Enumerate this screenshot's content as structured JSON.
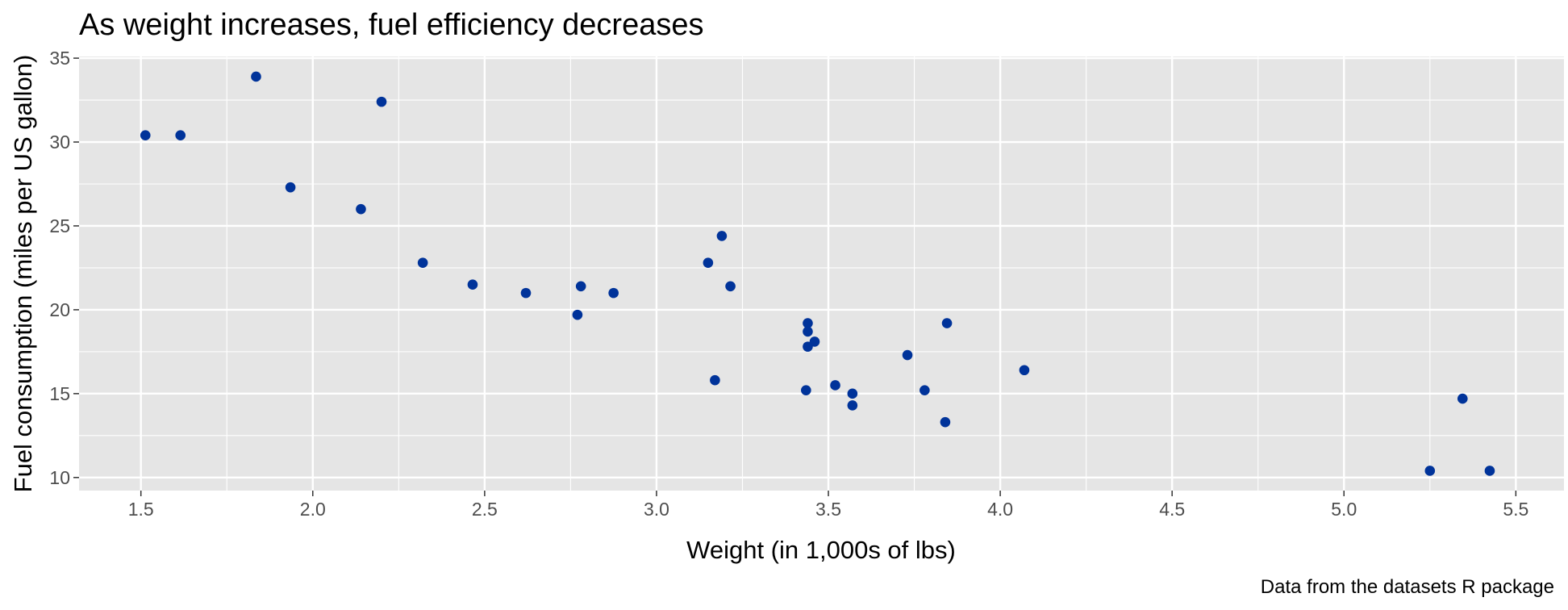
{
  "chart_data": {
    "type": "scatter",
    "title": "As weight increases, fuel efficiency decreases",
    "xlabel": "Weight (in 1,000s of lbs)",
    "ylabel": "Fuel consumption (miles per US gallon)",
    "caption": "Data from the datasets R package",
    "xlim": [
      1.32,
      5.64
    ],
    "ylim": [
      9.22,
      35.1
    ],
    "x_ticks": [
      1.5,
      2.0,
      2.5,
      3.0,
      3.5,
      4.0,
      4.5,
      5.0,
      5.5
    ],
    "x_tick_labels": [
      "1.5",
      "2.0",
      "2.5",
      "3.0",
      "3.5",
      "4.0",
      "4.5",
      "5.0",
      "5.5"
    ],
    "y_ticks": [
      10,
      15,
      20,
      25,
      30,
      35
    ],
    "y_tick_labels": [
      "10",
      "15",
      "20",
      "25",
      "30",
      "35"
    ],
    "grid": true,
    "colors": {
      "panel": "#e5e5e5",
      "grid": "#ffffff",
      "point": "#00339a",
      "tick": "#333333"
    },
    "points": [
      {
        "x": 2.62,
        "y": 21.0
      },
      {
        "x": 2.875,
        "y": 21.0
      },
      {
        "x": 2.32,
        "y": 22.8
      },
      {
        "x": 3.215,
        "y": 21.4
      },
      {
        "x": 3.44,
        "y": 18.7
      },
      {
        "x": 3.46,
        "y": 18.1
      },
      {
        "x": 3.57,
        "y": 14.3
      },
      {
        "x": 3.19,
        "y": 24.4
      },
      {
        "x": 3.15,
        "y": 22.8
      },
      {
        "x": 3.44,
        "y": 19.2
      },
      {
        "x": 3.44,
        "y": 17.8
      },
      {
        "x": 4.07,
        "y": 16.4
      },
      {
        "x": 3.73,
        "y": 17.3
      },
      {
        "x": 3.78,
        "y": 15.2
      },
      {
        "x": 5.25,
        "y": 10.4
      },
      {
        "x": 5.424,
        "y": 10.4
      },
      {
        "x": 5.345,
        "y": 14.7
      },
      {
        "x": 2.2,
        "y": 32.4
      },
      {
        "x": 1.615,
        "y": 30.4
      },
      {
        "x": 1.835,
        "y": 33.9
      },
      {
        "x": 2.465,
        "y": 21.5
      },
      {
        "x": 3.52,
        "y": 15.5
      },
      {
        "x": 3.435,
        "y": 15.2
      },
      {
        "x": 3.84,
        "y": 13.3
      },
      {
        "x": 3.845,
        "y": 19.2
      },
      {
        "x": 1.935,
        "y": 27.3
      },
      {
        "x": 2.14,
        "y": 26.0
      },
      {
        "x": 1.513,
        "y": 30.4
      },
      {
        "x": 3.17,
        "y": 15.8
      },
      {
        "x": 2.77,
        "y": 19.7
      },
      {
        "x": 3.57,
        "y": 15.0
      },
      {
        "x": 2.78,
        "y": 21.4
      }
    ]
  }
}
